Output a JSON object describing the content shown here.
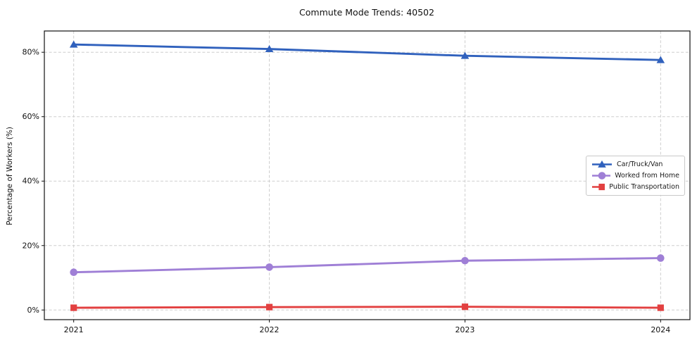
{
  "chart_data": {
    "type": "line",
    "title": "Commute Mode Trends: 40502",
    "xlabel": "",
    "ylabel": "Percentage of Workers (%)",
    "x": [
      2021,
      2022,
      2023,
      2024
    ],
    "x_tick_labels": [
      "2021",
      "2022",
      "2023",
      "2024"
    ],
    "y_ticks": [
      0,
      20,
      40,
      60,
      80
    ],
    "y_tick_labels": [
      "0%",
      "20%",
      "40%",
      "60%",
      "80%"
    ],
    "xlim": [
      2020.85,
      2024.15
    ],
    "ylim": [
      -3,
      86.6
    ],
    "grid": true,
    "grid_style": "dashed",
    "legend_position": "center-right",
    "series": [
      {
        "name": "Car/Truck/Van",
        "color": "#3061bd",
        "marker": "triangle",
        "values": [
          82.4,
          81.0,
          78.9,
          77.6
        ]
      },
      {
        "name": "Worked from Home",
        "color": "#9f7fd6",
        "marker": "circle",
        "values": [
          11.7,
          13.3,
          15.3,
          16.1
        ]
      },
      {
        "name": "Public Transportation",
        "color": "#e24040",
        "marker": "square",
        "values": [
          0.7,
          0.9,
          1.0,
          0.7
        ]
      }
    ]
  }
}
